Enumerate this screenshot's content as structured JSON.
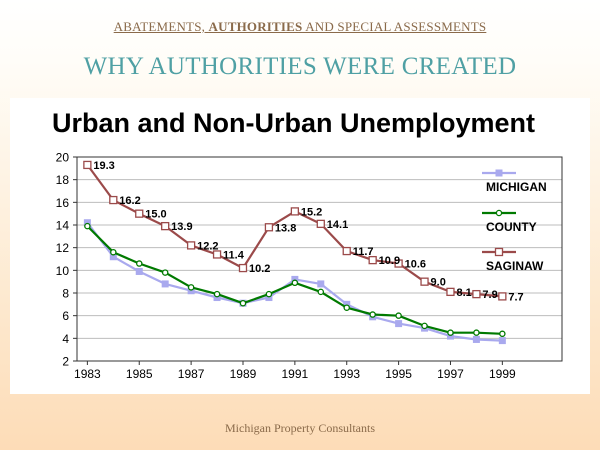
{
  "header": {
    "part1": "ABATEMENTS, ",
    "part2": "AUTHORITIES",
    "part3": " AND SPECIAL ASSESSMENTS"
  },
  "subtitle": "WHY AUTHORITIES WERE CREATED",
  "footer": "Michigan Property Consultants",
  "colors": {
    "michigan": "#a9a9ee",
    "county": "#007a00",
    "saginaw": "#9b4a4a"
  },
  "chart_data": {
    "type": "line",
    "title": "Urban and Non-Urban Unemployment",
    "x": [
      1983,
      1984,
      1985,
      1986,
      1987,
      1988,
      1989,
      1990,
      1991,
      1992,
      1993,
      1994,
      1995,
      1996,
      1997,
      1998,
      1999
    ],
    "xticks": [
      "1983",
      "1985",
      "1987",
      "1989",
      "1991",
      "1993",
      "1995",
      "1997",
      "1999"
    ],
    "ylim": [
      2,
      20
    ],
    "yticks": [
      2,
      4,
      6,
      8,
      10,
      12,
      14,
      16,
      18,
      20
    ],
    "grid": true,
    "legend_position": "right",
    "series": [
      {
        "name": "MICHIGAN",
        "marker": "square",
        "values": [
          14.2,
          11.2,
          9.9,
          8.8,
          8.2,
          7.6,
          7.1,
          7.6,
          9.2,
          8.8,
          7.0,
          5.9,
          5.3,
          4.9,
          4.2,
          3.9,
          3.8
        ]
      },
      {
        "name": "COUNTY",
        "marker": "circle",
        "values": [
          13.9,
          11.6,
          10.6,
          9.8,
          8.5,
          7.9,
          7.1,
          7.9,
          8.9,
          8.1,
          6.7,
          6.1,
          6.0,
          5.1,
          4.5,
          4.5,
          4.4
        ]
      },
      {
        "name": "SAGINAW",
        "marker": "open-square",
        "values": [
          19.3,
          16.2,
          15.0,
          13.9,
          12.2,
          11.4,
          10.2,
          13.8,
          15.2,
          14.1,
          11.7,
          10.9,
          10.6,
          9.0,
          8.1,
          7.9,
          7.7
        ],
        "labels": [
          "19.3",
          "16.2",
          "15.0",
          "13.9",
          "12.2",
          "11.4",
          "10.2",
          "13.8",
          "15.2",
          "14.1",
          "11.7",
          "10.9",
          "10.6",
          "9.0",
          "8.1",
          "7.9",
          "7.7"
        ]
      }
    ]
  }
}
